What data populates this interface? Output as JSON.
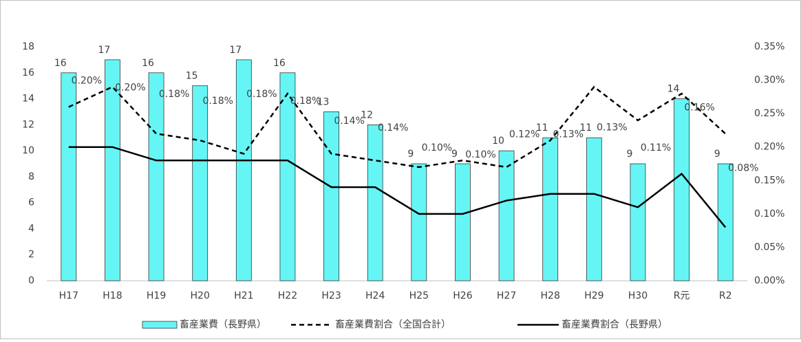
{
  "chart_data": {
    "type": "bar",
    "categories": [
      "H17",
      "H18",
      "H19",
      "H20",
      "H21",
      "H22",
      "H23",
      "H24",
      "H25",
      "H26",
      "H27",
      "H28",
      "H29",
      "H30",
      "R元",
      "R2"
    ],
    "series": [
      {
        "name": "畜産業費（長野県）",
        "type": "bar",
        "color": "#66f5f5",
        "axis": "y",
        "values": [
          16,
          17,
          16,
          15,
          17,
          16,
          13,
          12,
          9,
          9,
          10,
          11,
          11,
          9,
          14,
          9
        ]
      },
      {
        "name": "畜産業費割合（全国合計）",
        "type": "line",
        "color": "#000000",
        "dash": true,
        "axis": "y2",
        "values": [
          0.26,
          0.29,
          0.22,
          0.21,
          0.19,
          0.28,
          0.19,
          0.18,
          0.17,
          0.18,
          0.17,
          0.21,
          0.29,
          0.24,
          0.28,
          0.22
        ]
      },
      {
        "name": "畜産業費割合（長野県）",
        "type": "line",
        "color": "#000000",
        "dash": false,
        "axis": "y2",
        "values": [
          0.2,
          0.2,
          0.18,
          0.18,
          0.18,
          0.18,
          0.14,
          0.14,
          0.1,
          0.1,
          0.12,
          0.13,
          0.13,
          0.11,
          0.16,
          0.08
        ],
        "value_labels": [
          "0.20%",
          "0.20%",
          "0.18%",
          "0.18%",
          "0.18%",
          "0.18%",
          "0.14%",
          "0.14%",
          "0.10%",
          "0.10%",
          "0.12%",
          "0.13%",
          "0.13%",
          "0.11%",
          "0.16%",
          "0.08%"
        ]
      }
    ],
    "ylim": [
      0,
      18
    ],
    "yticks": [
      0,
      2,
      4,
      6,
      8,
      10,
      12,
      14,
      16,
      18
    ],
    "y2lim": [
      0,
      0.35
    ],
    "y2ticks": [
      {
        "value": 0,
        "label": "0.00%"
      },
      {
        "value": 0.05,
        "label": "0.05%"
      },
      {
        "value": 0.1,
        "label": "0.10%"
      },
      {
        "value": 0.15,
        "label": "0.15%"
      },
      {
        "value": 0.2,
        "label": "0.20%"
      },
      {
        "value": 0.25,
        "label": "0.25%"
      },
      {
        "value": 0.3,
        "label": "0.30%"
      },
      {
        "value": 0.35,
        "label": "0.35%"
      }
    ],
    "grid": false,
    "legend": "bottom"
  }
}
